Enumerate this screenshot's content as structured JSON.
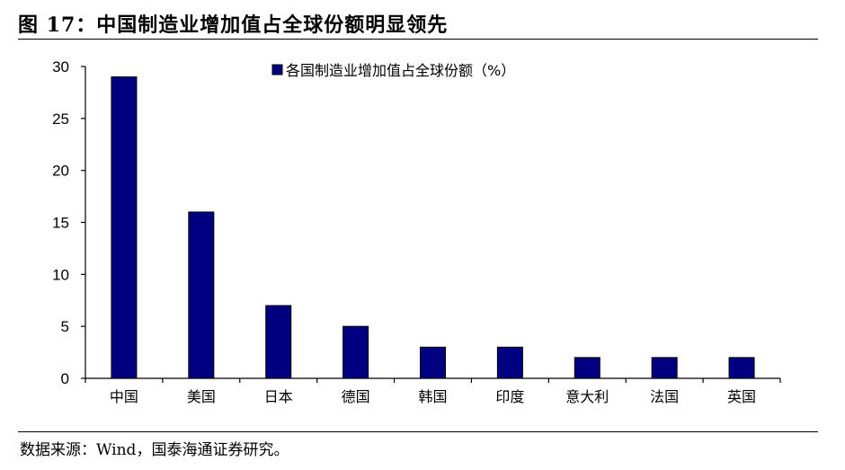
{
  "figure": {
    "title": "图 17：中国制造业增加值占全球份额明显领先",
    "source": "数据来源：Wind，国泰海通证券研究。"
  },
  "chart_data": {
    "type": "bar",
    "categories": [
      "中国",
      "美国",
      "日本",
      "德国",
      "韩国",
      "印度",
      "意大利",
      "法国",
      "英国"
    ],
    "series": [
      {
        "name": "各国制造业增加值占全球份额（%）",
        "values": [
          29,
          16,
          7,
          5,
          3,
          3,
          2,
          2,
          2
        ],
        "color": "#000080"
      }
    ],
    "ylim": [
      0,
      30
    ],
    "yticks": [
      0,
      5,
      10,
      15,
      20,
      25,
      30
    ],
    "grid": false,
    "legend_position": "top-center"
  }
}
